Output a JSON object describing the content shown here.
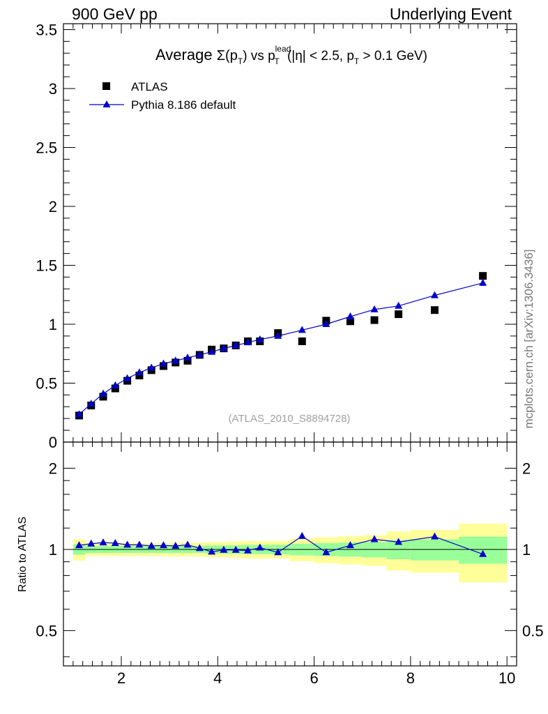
{
  "header": {
    "left": "900 GeV pp",
    "right": "Underlying Event"
  },
  "side_label": "mcplots.cern.ch [arXiv:1306.3436]",
  "chart_data": {
    "type": "scatter",
    "title_parts": {
      "prefix": "Average ",
      "sigma": "Σ(p",
      "sigma_sub": "T",
      "mid": ") vs p",
      "lead_sup": "lead",
      "lead_sub": "T",
      "cut1": " (|η| < 2.5, p",
      "cut_sub": "T",
      "cut2": " > 0.1 GeV)"
    },
    "watermark": "(ATLAS_2010_S8894728)",
    "main": {
      "xlim": [
        0.8,
        10.2
      ],
      "ylim": [
        0,
        3.55
      ],
      "yticks": [
        "0",
        "0.5",
        "1",
        "1.5",
        "2",
        "2.5",
        "3",
        "3.5"
      ],
      "series": [
        {
          "name": "ATLAS",
          "marker": "square",
          "color": "#000000",
          "x": [
            1.125,
            1.375,
            1.625,
            1.875,
            2.125,
            2.375,
            2.625,
            2.875,
            3.125,
            3.375,
            3.625,
            3.875,
            4.125,
            4.375,
            4.625,
            4.875,
            5.25,
            5.75,
            6.25,
            6.75,
            7.25,
            7.75,
            8.5,
            9.5
          ],
          "y": [
            0.225,
            0.31,
            0.385,
            0.455,
            0.52,
            0.565,
            0.61,
            0.645,
            0.675,
            0.69,
            0.74,
            0.785,
            0.795,
            0.82,
            0.855,
            0.855,
            0.925,
            0.855,
            1.03,
            1.025,
            1.035,
            1.085,
            1.12,
            1.41
          ]
        },
        {
          "name": "Pythia 8.186 default",
          "marker": "triangle",
          "color": "#0000cc",
          "x": [
            1.125,
            1.375,
            1.625,
            1.875,
            2.125,
            2.375,
            2.625,
            2.875,
            3.125,
            3.375,
            3.625,
            3.875,
            4.125,
            4.375,
            4.625,
            4.875,
            5.25,
            5.75,
            6.25,
            6.75,
            7.25,
            7.75,
            8.5,
            9.5
          ],
          "y": [
            0.235,
            0.325,
            0.41,
            0.48,
            0.54,
            0.59,
            0.63,
            0.665,
            0.69,
            0.715,
            0.74,
            0.765,
            0.795,
            0.82,
            0.845,
            0.87,
            0.9,
            0.95,
            1.0,
            1.065,
            1.125,
            1.155,
            1.245,
            1.35
          ]
        }
      ]
    },
    "ratio": {
      "ylabel": "Ratio to ATLAS",
      "yticks": [
        "0.5",
        "1",
        "2"
      ],
      "xticks": [
        "2",
        "4",
        "6",
        "8",
        "10"
      ],
      "x_edges": [
        1.0,
        1.25,
        1.5,
        1.75,
        2.0,
        2.25,
        2.5,
        2.75,
        3.0,
        3.25,
        3.5,
        3.75,
        4.0,
        4.25,
        4.5,
        4.75,
        5.0,
        5.5,
        6.0,
        6.5,
        7.0,
        7.5,
        8.0,
        9.0,
        10.0
      ],
      "green_half": [
        0.045,
        0.03,
        0.03,
        0.03,
        0.03,
        0.03,
        0.03,
        0.03,
        0.03,
        0.03,
        0.03,
        0.035,
        0.035,
        0.035,
        0.04,
        0.04,
        0.04,
        0.05,
        0.055,
        0.06,
        0.065,
        0.08,
        0.09,
        0.115
      ],
      "yellow_half": [
        0.09,
        0.055,
        0.055,
        0.055,
        0.055,
        0.055,
        0.055,
        0.055,
        0.06,
        0.06,
        0.06,
        0.065,
        0.065,
        0.07,
        0.075,
        0.075,
        0.075,
        0.095,
        0.11,
        0.12,
        0.13,
        0.165,
        0.18,
        0.245
      ],
      "pythia_ratio": [
        1.035,
        1.05,
        1.06,
        1.055,
        1.04,
        1.04,
        1.03,
        1.035,
        1.03,
        1.04,
        1.01,
        0.98,
        0.995,
        0.995,
        0.99,
        1.015,
        0.975,
        1.12,
        0.975,
        1.035,
        1.09,
        1.065,
        1.115,
        0.96
      ]
    }
  }
}
